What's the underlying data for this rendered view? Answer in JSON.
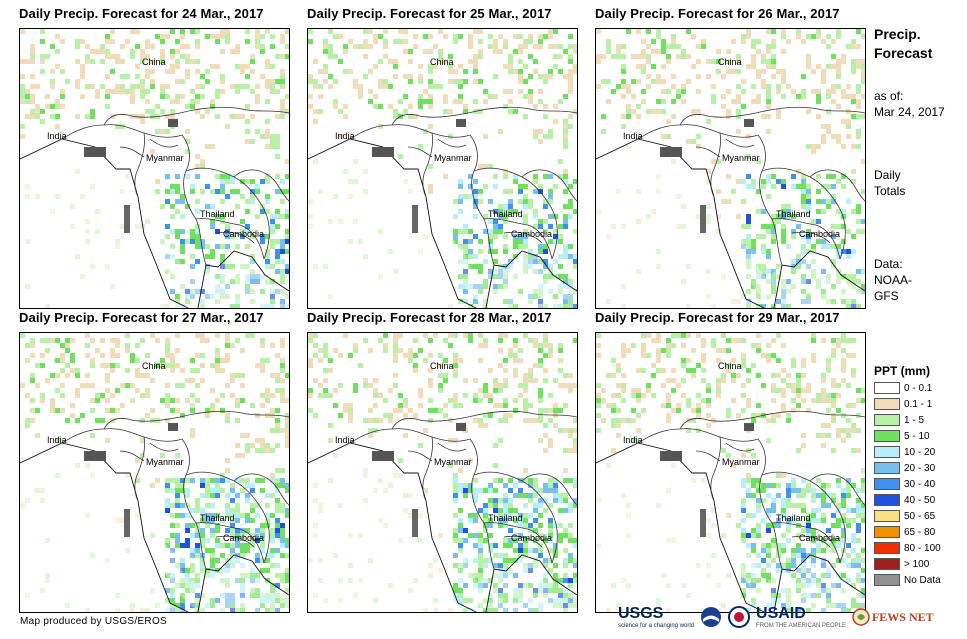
{
  "panels": [
    {
      "title": "Daily Precip. Forecast for 24 Mar., 2017"
    },
    {
      "title": "Daily Precip. Forecast for 25 Mar., 2017"
    },
    {
      "title": "Daily Precip. Forecast for 26 Mar., 2017"
    },
    {
      "title": "Daily Precip. Forecast for 27 Mar., 2017"
    },
    {
      "title": "Daily Precip. Forecast for 28 Mar., 2017"
    },
    {
      "title": "Daily Precip. Forecast for 29 Mar., 2017"
    }
  ],
  "map_labels": {
    "china": "China",
    "india": "India",
    "myanmar": "Myanmar",
    "thailand": "Thailand",
    "cambodia": "Cambodia"
  },
  "sidebar": {
    "title_line1": "Precip.",
    "title_line2": "Forecast",
    "asof_label": "as of:",
    "asof_date": "Mar 24, 2017",
    "totals_line1": "Daily",
    "totals_line2": "Totals",
    "data_line1": "Data:",
    "data_line2": "NOAA-",
    "data_line3": "GFS"
  },
  "legend": {
    "title": "PPT (mm)",
    "items": [
      {
        "label": "0 - 0.1",
        "color": "#ffffff"
      },
      {
        "label": "0.1 - 1",
        "color": "#f0dcb8"
      },
      {
        "label": "1 - 5",
        "color": "#b8f0a8"
      },
      {
        "label": "5 - 10",
        "color": "#70e060"
      },
      {
        "label": "10 - 20",
        "color": "#b8eef8"
      },
      {
        "label": "20 - 30",
        "color": "#78c0f0"
      },
      {
        "label": "30 - 40",
        "color": "#4090f0"
      },
      {
        "label": "40 - 50",
        "color": "#2050e0"
      },
      {
        "label": "50 - 65",
        "color": "#f8e080"
      },
      {
        "label": "65 - 80",
        "color": "#f09000"
      },
      {
        "label": "80 - 100",
        "color": "#f03000"
      },
      {
        "label": "> 100",
        "color": "#a02020"
      },
      {
        "label": "No Data",
        "color": "#909090"
      }
    ]
  },
  "credit": "Map produced by USGS/EROS",
  "logos": {
    "usgs": "USGS",
    "usgs_sub": "science for a changing world",
    "usaid": "USAID",
    "usaid_sub": "FROM THE AMERICAN PEOPLE",
    "fewsnet": "FEWS NET"
  }
}
